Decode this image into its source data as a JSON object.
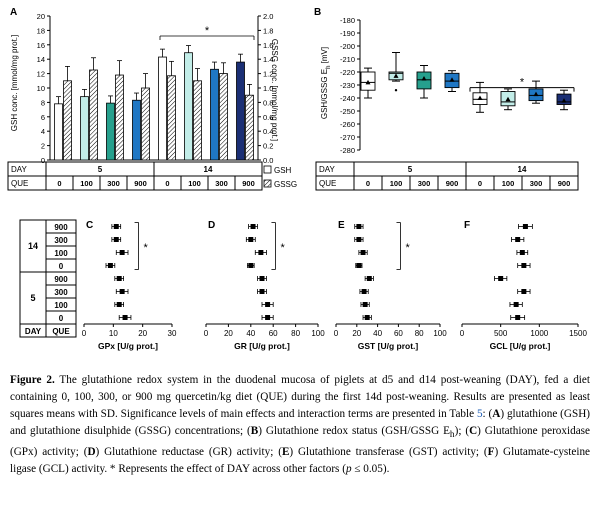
{
  "chart_data": [
    {
      "type": "bar",
      "panel_label": "A",
      "ylabel_left": "GSH conc. [mmol/mg prot.]",
      "ylabel_right": "GSSG conc. [mmol/mg prot.]",
      "ylim_left": [
        0,
        20
      ],
      "ylim_right": [
        0,
        2.0
      ],
      "left_ticks": [
        "0",
        "2",
        "4",
        "6",
        "8",
        "10",
        "12",
        "14",
        "16",
        "18",
        "20"
      ],
      "right_ticks": [
        "0.0",
        "0.2",
        "0.4",
        "0.6",
        "0.8",
        "1.0",
        "1.2",
        "1.4",
        "1.6",
        "1.8",
        "2.0"
      ],
      "categories": [
        "5|0",
        "5|100",
        "5|300",
        "5|900",
        "14|0",
        "14|100",
        "14|300",
        "14|900"
      ],
      "series": [
        {
          "name": "GSH",
          "values": [
            7.8,
            8.8,
            7.9,
            8.3,
            14.3,
            14.9,
            12.6,
            13.6
          ],
          "errors": [
            1.0,
            1.0,
            1.0,
            1.0,
            1.1,
            1.0,
            1.0,
            1.1
          ]
        },
        {
          "name": "GSSG",
          "values": [
            1.1,
            1.25,
            1.18,
            1.0,
            1.17,
            1.1,
            1.2,
            0.9
          ],
          "errors": [
            0.2,
            0.17,
            0.2,
            0.2,
            0.2,
            0.17,
            0.15,
            0.15
          ]
        }
      ],
      "significance": "*"
    },
    {
      "type": "box",
      "panel_label": "B",
      "ylabel": "GSH/GSSG Eh [mV]",
      "ylim": [
        -280,
        -180
      ],
      "ticks": [
        "-180",
        "-190",
        "-200",
        "-210",
        "-220",
        "-230",
        "-240",
        "-250",
        "-260",
        "-270",
        "-280"
      ],
      "boxes": [
        {
          "group": "5|0",
          "min": -240,
          "q1": -234,
          "median": -228,
          "q3": -220,
          "max": -217,
          "mean": -228
        },
        {
          "group": "5|100",
          "min": -227,
          "q1": -226,
          "median": -221,
          "q3": -220,
          "max": -205,
          "mean": -223,
          "outlier": -234
        },
        {
          "group": "5|300",
          "min": -240,
          "q1": -233,
          "median": -226,
          "q3": -220,
          "max": -215,
          "mean": -225
        },
        {
          "group": "5|900",
          "min": -235,
          "q1": -232,
          "median": -227,
          "q3": -221,
          "max": -219,
          "mean": -226
        },
        {
          "group": "14|0",
          "min": -251,
          "q1": -245,
          "median": -241,
          "q3": -236,
          "max": -228,
          "mean": -240
        },
        {
          "group": "14|100",
          "min": -249,
          "q1": -246,
          "median": -243,
          "q3": -235,
          "max": -233,
          "mean": -241
        },
        {
          "group": "14|300",
          "min": -244,
          "q1": -242,
          "median": -238,
          "q3": -233,
          "max": -227,
          "mean": -237
        },
        {
          "group": "14|900",
          "min": -249,
          "q1": -245,
          "median": -243,
          "q3": -237,
          "max": -234,
          "mean": -242
        }
      ],
      "significance": "*"
    },
    {
      "type": "dot-error",
      "panel_label": "C",
      "xlabel": "GPx [U/g prot.]",
      "xlim": [
        0,
        30
      ],
      "ticks": [
        "0",
        "10",
        "20",
        "30"
      ],
      "values": [
        11,
        11,
        13,
        9,
        12,
        13,
        12,
        14
      ],
      "errors": [
        1.5,
        1.5,
        2,
        1.5,
        1.5,
        2,
        1.5,
        2
      ],
      "significance": "*"
    },
    {
      "type": "dot-error",
      "panel_label": "D",
      "xlabel": "GR [U/g prot.]",
      "xlim": [
        0,
        100
      ],
      "ticks": [
        "0",
        "20",
        "40",
        "60",
        "80",
        "100"
      ],
      "values": [
        42,
        40,
        49,
        40,
        50,
        50,
        55,
        55
      ],
      "errors": [
        4,
        4,
        5,
        3,
        4,
        4,
        5,
        5
      ],
      "significance": "*"
    },
    {
      "type": "dot-error",
      "panel_label": "E",
      "xlabel": "GST [U/g prot.]",
      "xlim": [
        0,
        100
      ],
      "ticks": [
        "0",
        "20",
        "40",
        "60",
        "80",
        "100"
      ],
      "values": [
        22,
        22,
        26,
        22,
        32,
        27,
        28,
        30
      ],
      "errors": [
        4,
        4,
        4,
        3,
        4,
        4,
        4,
        4
      ],
      "significance": "*"
    },
    {
      "type": "dot-error",
      "panel_label": "F",
      "xlabel": "GCL [U/g prot.]",
      "xlim": [
        0,
        1500
      ],
      "ticks": [
        "0",
        "500",
        "1000",
        "1500"
      ],
      "values": [
        820,
        720,
        780,
        800,
        500,
        800,
        700,
        720
      ],
      "errors": [
        90,
        80,
        70,
        80,
        80,
        80,
        80,
        90
      ]
    }
  ],
  "table_top": {
    "day_label": "DAY",
    "que_label": "QUE",
    "days": [
      "5",
      "14"
    ],
    "que": [
      "0",
      "100",
      "300",
      "900"
    ]
  },
  "legend": [
    {
      "name": "GSH"
    },
    {
      "name": "GSSG"
    }
  ],
  "table_left": {
    "day_label": "DAY",
    "que_label": "QUE",
    "rows": [
      {
        "day": "14",
        "que": [
          "900",
          "300",
          "100",
          "0"
        ]
      },
      {
        "day": "5",
        "que": [
          "900",
          "300",
          "100",
          "0"
        ]
      }
    ]
  },
  "colors": {
    "light": "#c2ede8",
    "teal": "#26a08d",
    "blue": "#1f77c4",
    "dark": "#1b2f75",
    "white": "#ffffff"
  },
  "caption": {
    "label": "Figure 2.",
    "parts": [
      " The glutathione redox system in the duodenal mucosa of piglets at d5 and d14 post-weaning (DAY), fed a diet containing 0, 100, 300, or 900 mg quercetin/kg diet (QUE) during the first 14d post-weaning. Results are presented as least squares means with SD. Significance levels of main effects and interaction terms are presented in Table ",
      "5",
      ": (",
      "A",
      ") glutathione (GSH) and glutathione disulphide (GSSG) concentrations; (",
      "B",
      ") Glutathione redox status (GSH/GSSG E",
      "h",
      "); (",
      "C",
      ") Glutathione peroxidase (GPx) activity; (",
      "D",
      ") Glutathione reductase (GR) activity; (",
      "E",
      ") Glutathione transferase (GST) activity; (",
      "F",
      ") Glutamate-cysteine ligase (GCL) activity. * Represents the effect of DAY across other factors (",
      "p",
      " ≤ 0.05)."
    ]
  }
}
